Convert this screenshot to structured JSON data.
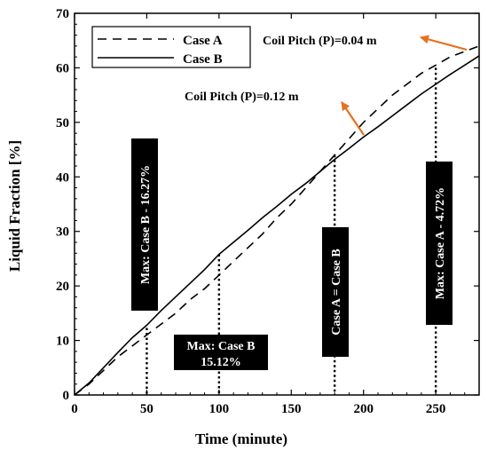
{
  "chart_data": {
    "type": "line",
    "title": "",
    "xlabel": "Time (minute)",
    "ylabel": "Liquid Fraction [%]",
    "xlim": [
      0,
      280
    ],
    "ylim": [
      0,
      70
    ],
    "x_ticks": [
      0,
      50,
      100,
      150,
      200,
      250
    ],
    "y_ticks": [
      0,
      10,
      20,
      30,
      40,
      50,
      60,
      70
    ],
    "grid": false,
    "legend": {
      "position": "top-left"
    },
    "series": [
      {
        "name": "Case A",
        "style": "dashed",
        "color": "#000000",
        "x": [
          0,
          10,
          20,
          30,
          40,
          50,
          60,
          70,
          80,
          90,
          100,
          110,
          120,
          130,
          140,
          150,
          160,
          170,
          180,
          190,
          200,
          210,
          220,
          230,
          240,
          250,
          260,
          270,
          280
        ],
        "y": [
          0,
          2,
          4.5,
          7,
          9,
          11,
          13,
          15,
          17.5,
          19.5,
          22,
          24.5,
          27,
          29.5,
          32.5,
          35,
          38,
          41,
          44,
          47,
          50,
          52.5,
          55,
          57,
          59,
          60.5,
          62,
          63,
          64
        ]
      },
      {
        "name": "Case B",
        "style": "solid",
        "color": "#000000",
        "x": [
          0,
          10,
          20,
          30,
          40,
          50,
          60,
          70,
          80,
          90,
          100,
          110,
          120,
          130,
          140,
          150,
          160,
          170,
          180,
          190,
          200,
          210,
          220,
          230,
          240,
          250,
          260,
          270,
          280
        ],
        "y": [
          0,
          2.2,
          5,
          7.8,
          10.5,
          12.8,
          15.5,
          18,
          20.5,
          23,
          25.8,
          28,
          30.2,
          32.5,
          34.6,
          36.8,
          38.8,
          41,
          43.2,
          45.2,
          47.3,
          49.2,
          51.2,
          53.2,
          55.2,
          57,
          58.8,
          60.5,
          62.2
        ]
      }
    ],
    "vertical_markers": [
      {
        "x": 50,
        "y": 12.3
      },
      {
        "x": 100,
        "y": 25.8
      },
      {
        "x": 180,
        "y": 44
      },
      {
        "x": 250,
        "y": 60
      }
    ],
    "annotations": {
      "max_b_16": "Max: Case B - 16.27%",
      "max_b_15_line1": "Max: Case B",
      "max_b_15_line2": "15.12%",
      "equal": "Case A = Case B",
      "max_a": "Max: Case A - 4.72%",
      "pitch_012": "Coil Pitch (P)=0.12 m",
      "pitch_004": "Coil Pitch (P)=0.04 m"
    },
    "arrow_color": "#e8701e"
  }
}
